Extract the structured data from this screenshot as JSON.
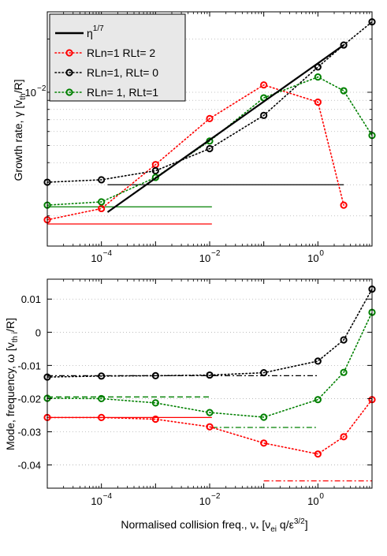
{
  "chart_data": [
    {
      "type": "line",
      "xscale": "log",
      "yscale": "log",
      "xlim": [
        1e-05,
        10
      ],
      "ylabel_main": "Growth rate, γ [v",
      "ylabel_sub": "th",
      "ylabel_tail": "/R]",
      "ytick_major": "10",
      "ytick_major_exp": "−2",
      "xtick_labels": [
        "10",
        "10",
        "10"
      ],
      "xtick_exps": [
        "−4",
        "−2",
        "0"
      ],
      "legend": {
        "position": "top-left",
        "entries": [
          {
            "label": "η",
            "sup": "1/7",
            "color": "#000000",
            "style": "solid"
          },
          {
            "label": "RLn=1  RLt= 2",
            "color": "#ff0000",
            "style": "dotted-circle"
          },
          {
            "label": "RLn=1, RLt= 0",
            "color": "#000000",
            "style": "dotted-circle"
          },
          {
            "label": "RLn= 1, RLt=1",
            "color": "#008000",
            "style": "dotted-circle"
          }
        ]
      },
      "series": [
        {
          "name": "RLn=1  RLt= 2",
          "color": "#ff0000",
          "x": [
            1e-05,
            0.0001,
            0.001,
            0.01,
            0.1,
            1,
            3,
            10
          ],
          "y": [
            0.0019,
            0.0022,
            0.0039,
            0.0071,
            0.011,
            0.0088,
            0.0023,
            null
          ]
        },
        {
          "name": "RLn=1, RLt= 0",
          "color": "#000000",
          "x": [
            1e-05,
            0.0001,
            0.001,
            0.01,
            0.1,
            1,
            3,
            10
          ],
          "y": [
            0.0031,
            0.0032,
            0.0036,
            0.0048,
            0.0074,
            0.0139,
            0.0185,
            0.025
          ]
        },
        {
          "name": "RLn= 1, RLt=1",
          "color": "#008000",
          "x": [
            1e-05,
            0.0001,
            0.001,
            0.01,
            0.1,
            1,
            3,
            10
          ],
          "y": [
            0.0023,
            0.0024,
            0.0033,
            0.0053,
            0.0093,
            0.0122,
            0.0102,
            0.0057
          ]
        }
      ],
      "reference": {
        "label": "η^1/7",
        "x": [
          0.00013,
          3
        ],
        "y": [
          0.0021,
          0.0185
        ]
      },
      "hlines": [
        {
          "color": "#000000",
          "y": 0.003,
          "x": [
            0.00013,
            3
          ]
        },
        {
          "color": "#008000",
          "y": 0.00225,
          "x": [
            1e-05,
            0.011
          ]
        },
        {
          "color": "#ff0000",
          "y": 0.0018,
          "x": [
            1e-05,
            0.011
          ]
        }
      ],
      "grid": "y-major"
    },
    {
      "type": "line",
      "xscale": "log",
      "xlim": [
        1e-05,
        10
      ],
      "ylim": [
        -0.047,
        0.016
      ],
      "ylabel_main": "Mode, frequency, ω [v",
      "ylabel_sub": "th i",
      "ylabel_tail": "/R]",
      "xlabel": "Normalised collision freq., ν",
      "xlabel_sub1": "*",
      "xlabel_mid": " [ν",
      "xlabel_sub2": "ei",
      "xlabel_mid2": " q/ε",
      "xlabel_sup": "3/2",
      "xlabel_tail": "]",
      "yticks": [
        0.01,
        0,
        -0.01,
        -0.02,
        -0.03,
        -0.04
      ],
      "ytick_labels": [
        "0.01",
        "0",
        "-0.01",
        "-0.02",
        "-0.03",
        "-0.04"
      ],
      "xtick_labels": [
        "10",
        "10",
        "10"
      ],
      "xtick_exps": [
        "−4",
        "−2",
        "0"
      ],
      "series": [
        {
          "name": "RLn=1, RLt= 0",
          "color": "#000000",
          "x": [
            1e-05,
            0.0001,
            0.001,
            0.01,
            0.1,
            1,
            3,
            10
          ],
          "y": [
            -0.0135,
            -0.0132,
            -0.0131,
            -0.0129,
            -0.0122,
            -0.0087,
            -0.0023,
            0.013
          ]
        },
        {
          "name": "RLn= 1, RLt=1",
          "color": "#008000",
          "x": [
            1e-05,
            0.0001,
            0.001,
            0.01,
            0.1,
            1,
            3,
            10
          ],
          "y": [
            -0.0199,
            -0.02,
            -0.0213,
            -0.0242,
            -0.0256,
            -0.0203,
            -0.0121,
            0.006
          ]
        },
        {
          "name": "RLn=1  RLt= 2",
          "color": "#ff0000",
          "x": [
            1e-05,
            0.0001,
            0.001,
            0.01,
            0.1,
            1,
            3,
            10
          ],
          "y": [
            -0.0257,
            -0.0257,
            -0.0262,
            -0.0285,
            -0.0334,
            -0.0367,
            -0.0315,
            -0.0203
          ]
        }
      ],
      "reference_lines": [
        {
          "color": "#000000",
          "style": "dashdot",
          "y": -0.0131,
          "x": [
            1e-05,
            1
          ]
        },
        {
          "color": "#008000",
          "style": "dashed",
          "y": -0.0195,
          "x": [
            1e-05,
            0.011
          ]
        },
        {
          "color": "#008000",
          "style": "dashdot",
          "y": -0.0287,
          "x": [
            0.011,
            1
          ]
        },
        {
          "color": "#ff0000",
          "style": "solid",
          "y": -0.0257,
          "x": [
            1e-05,
            0.011
          ]
        },
        {
          "color": "#ff0000",
          "style": "dashdot",
          "y": -0.0448,
          "x": [
            0.1,
            10
          ]
        }
      ],
      "grid": "y-major"
    }
  ]
}
